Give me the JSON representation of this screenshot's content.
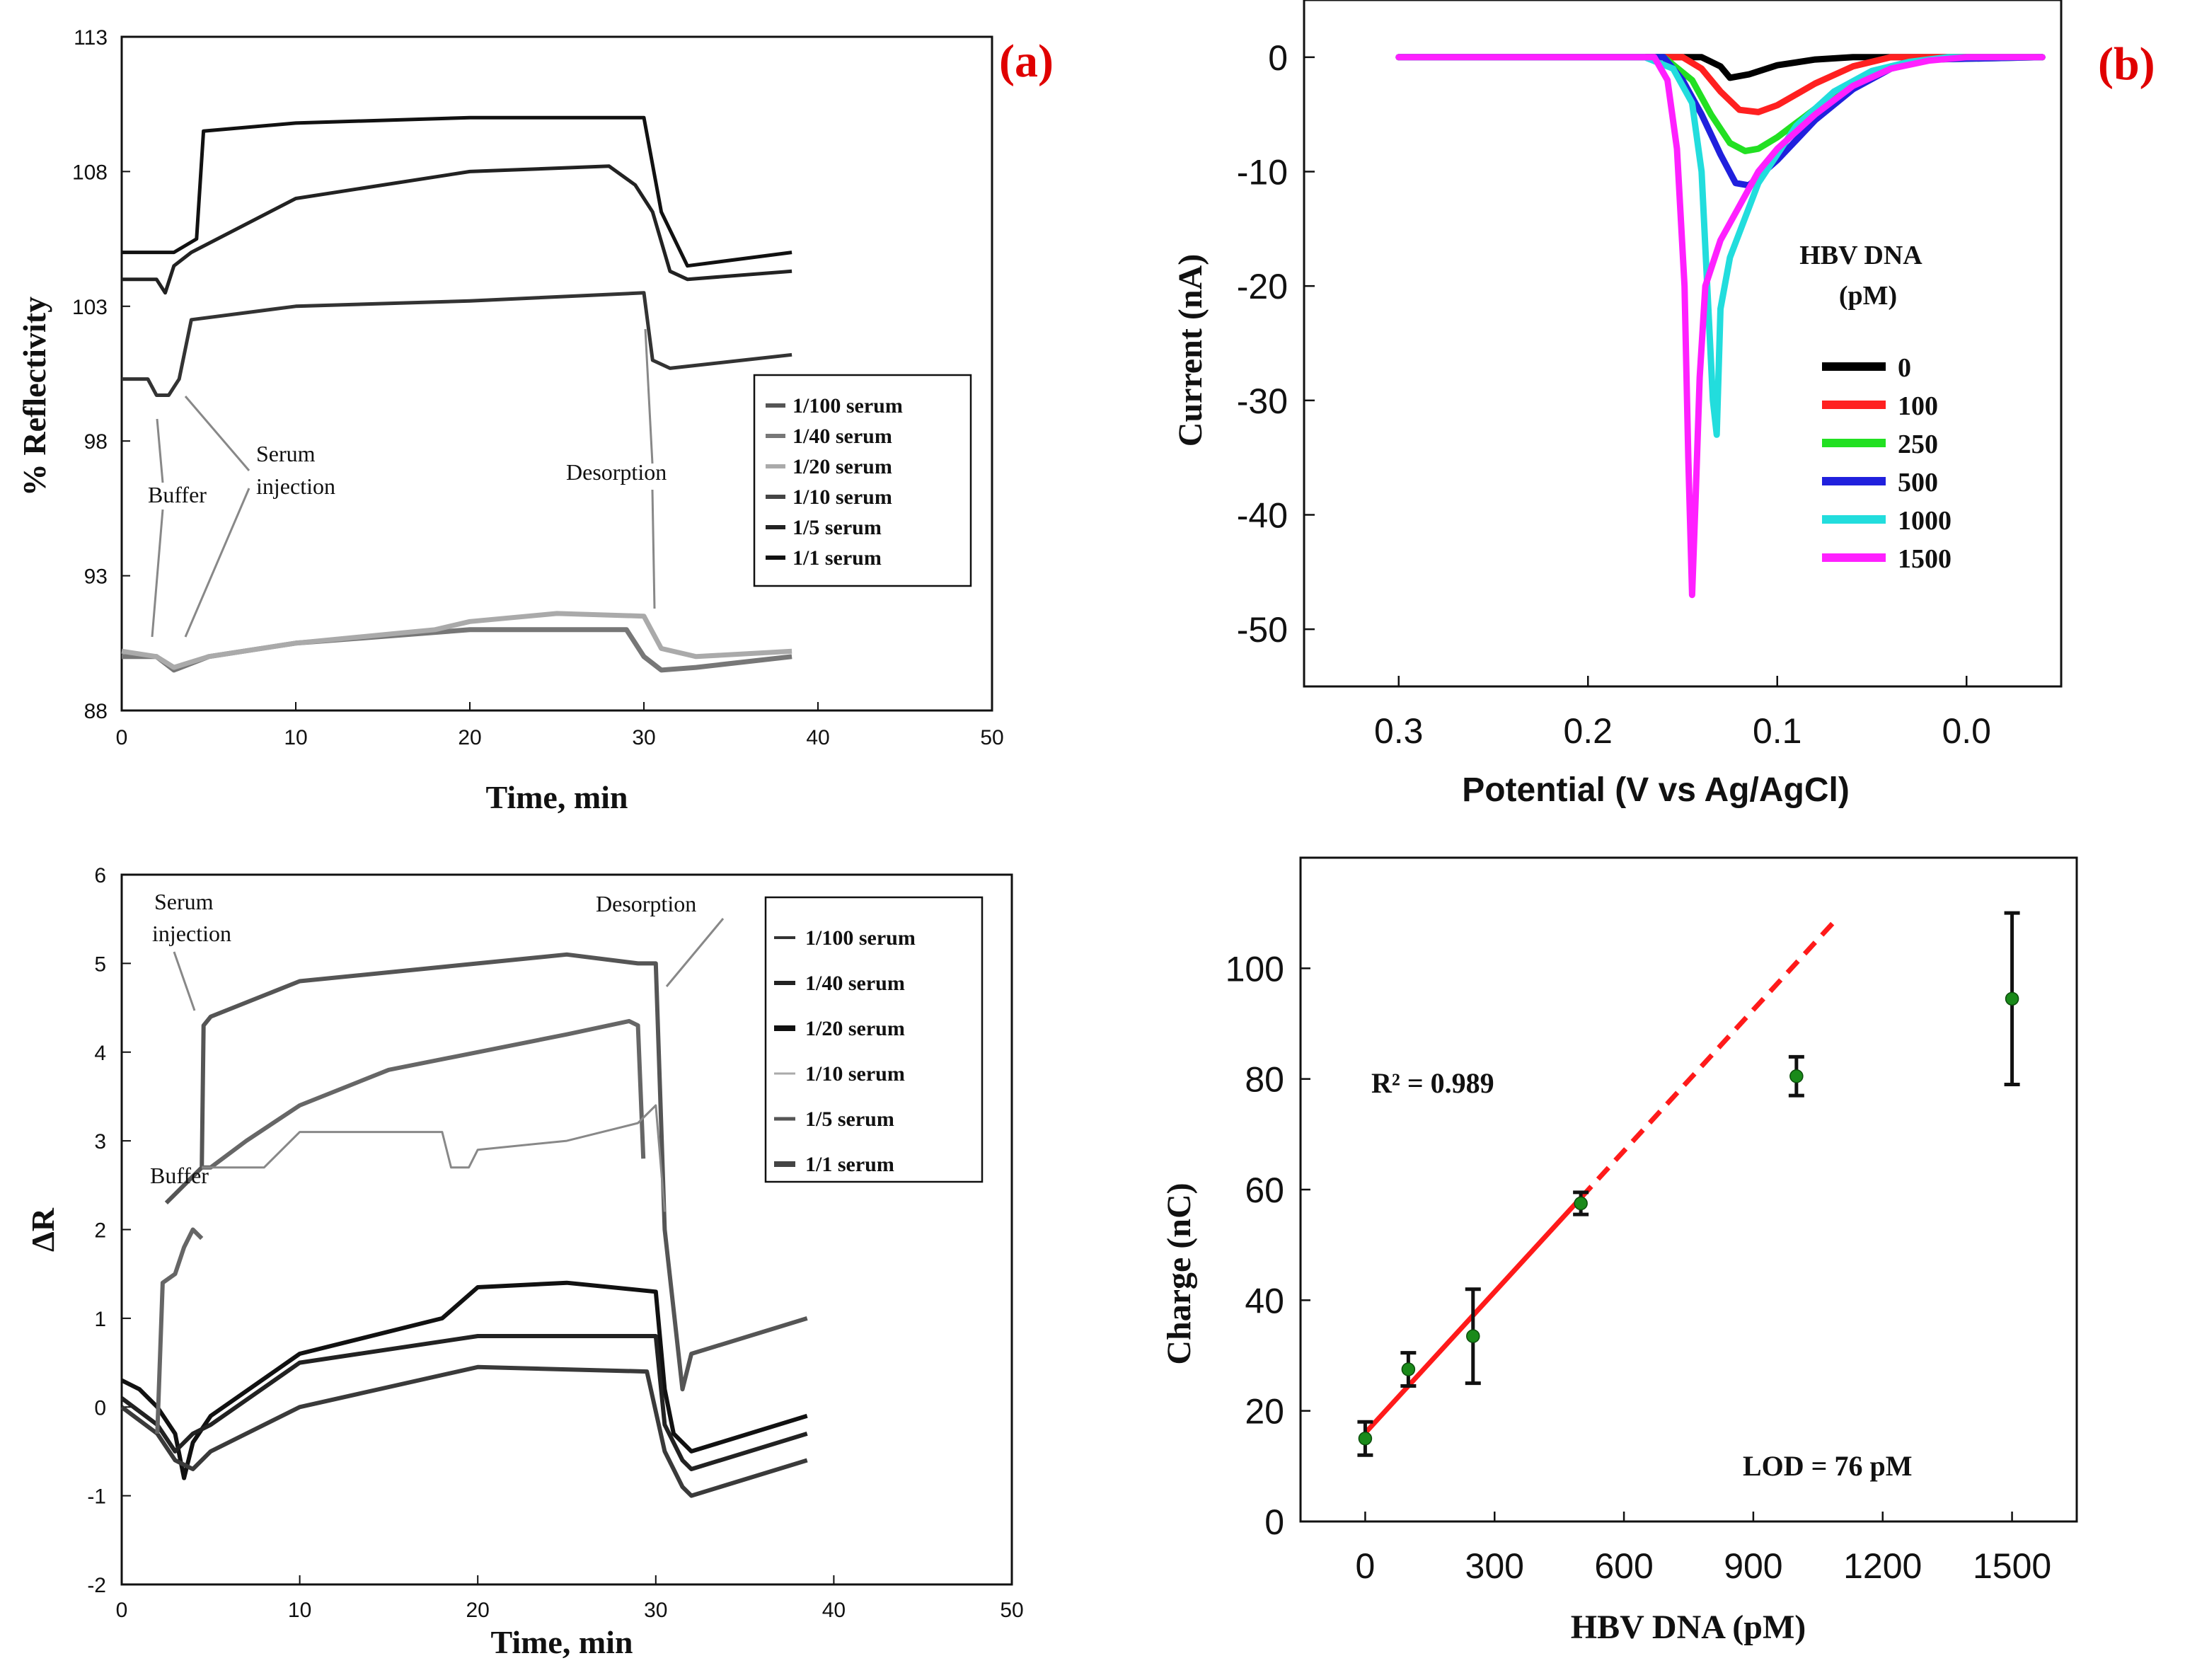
{
  "panels": {
    "a": "(a)",
    "b": "(b)"
  },
  "chart_data": [
    {
      "id": "a_top",
      "type": "line",
      "xlabel": "Time, min",
      "ylabel": "% Reflectivity",
      "xlim": [
        0,
        50
      ],
      "ylim": [
        88,
        113
      ],
      "xticks": [
        0,
        10,
        20,
        30,
        40,
        50
      ],
      "yticks": [
        88,
        93,
        98,
        103,
        108,
        113
      ],
      "legend": [
        "1/100 serum",
        "1/40 serum",
        "1/20 serum",
        "1/10 serum",
        "1/5 serum",
        "1/1 serum"
      ],
      "annotations": [
        "Buffer",
        "Serum",
        "injection",
        "Desorption"
      ],
      "series": [
        {
          "name": "1/1 serum",
          "color": "#111111",
          "x": [
            0,
            3,
            4.3,
            4.7,
            10,
            20,
            30,
            31,
            32.5,
            38.5
          ],
          "y": [
            105,
            105,
            105.5,
            109.5,
            109.8,
            110,
            110,
            106.5,
            104.5,
            105
          ]
        },
        {
          "name": "1/5 serum",
          "color": "#222222",
          "x": [
            0,
            2,
            2.5,
            3,
            4,
            10,
            20,
            28,
            29.5,
            30.5,
            31.5,
            32.5,
            38.5
          ],
          "y": [
            104,
            104,
            103.5,
            104.5,
            105,
            107,
            108,
            108.2,
            107.5,
            106.5,
            104.3,
            104,
            104.3
          ]
        },
        {
          "name": "1/10 serum",
          "color": "#333333",
          "x": [
            0,
            1.5,
            2,
            2.7,
            3.3,
            4,
            10,
            20,
            30,
            30.5,
            31.5,
            38.5
          ],
          "y": [
            100.3,
            100.3,
            99.7,
            99.7,
            100.3,
            102.5,
            103,
            103.2,
            103.5,
            101,
            100.7,
            101.2
          ]
        },
        {
          "name": "1/40 serum",
          "color": "#777777",
          "x": [
            0,
            2,
            3,
            5,
            10,
            20,
            29,
            30,
            31,
            33,
            38.5
          ],
          "y": [
            90,
            90,
            89.5,
            90,
            90.5,
            91,
            91,
            90,
            89.5,
            89.6,
            90
          ]
        },
        {
          "name": "1/20 serum",
          "color": "#aaaaaa",
          "x": [
            0,
            2,
            3,
            5,
            10,
            18,
            20,
            25,
            30,
            31,
            33,
            38.5
          ],
          "y": [
            90.2,
            90,
            89.6,
            90,
            90.5,
            91,
            91.3,
            91.6,
            91.5,
            90.3,
            90,
            90.2
          ]
        }
      ]
    },
    {
      "id": "b_top",
      "type": "line",
      "xlabel": "Potential  (V vs Ag/AgCl)",
      "ylabel": "Current (nA)",
      "xlim": [
        0.35,
        -0.05
      ],
      "ylim": [
        -55,
        5
      ],
      "xticks": [
        0.3,
        0.2,
        0.1,
        0.0
      ],
      "xtick_labels": [
        "0.3",
        "0.2",
        "0.1",
        "0.0"
      ],
      "yticks": [
        0,
        -10,
        -20,
        -30,
        -40,
        -50
      ],
      "legend_title": [
        "HBV DNA",
        "(pM)"
      ],
      "legend": [
        "0",
        "100",
        "250",
        "500",
        "1000",
        "1500"
      ],
      "series": [
        {
          "name": "0",
          "color": "#000000",
          "x": [
            0.3,
            0.14,
            0.13,
            0.125,
            0.115,
            0.1,
            0.08,
            0.06,
            -0.04
          ],
          "y": [
            0,
            0,
            -0.8,
            -1.8,
            -1.5,
            -0.7,
            -0.2,
            0,
            0
          ]
        },
        {
          "name": "100",
          "color": "#ff2020",
          "x": [
            0.3,
            0.15,
            0.14,
            0.13,
            0.12,
            0.11,
            0.1,
            0.08,
            0.06,
            0.04,
            -0.04
          ],
          "y": [
            0,
            0,
            -1,
            -3,
            -4.6,
            -4.8,
            -4.2,
            -2.3,
            -0.8,
            0,
            0
          ]
        },
        {
          "name": "250",
          "color": "#22e022",
          "x": [
            0.3,
            0.16,
            0.145,
            0.135,
            0.125,
            0.117,
            0.11,
            0.1,
            0.08,
            0.06,
            0.04,
            0.02,
            -0.04
          ],
          "y": [
            0,
            0,
            -2,
            -5,
            -7.5,
            -8.2,
            -8,
            -7,
            -4.5,
            -2.3,
            -0.8,
            -0.2,
            0
          ]
        },
        {
          "name": "500",
          "color": "#2020dd",
          "x": [
            0.3,
            0.16,
            0.15,
            0.14,
            0.13,
            0.122,
            0.115,
            0.1,
            0.08,
            0.06,
            0.04,
            0.02,
            -0.04
          ],
          "y": [
            0,
            0,
            -2,
            -5,
            -8.5,
            -11,
            -11.2,
            -9,
            -5.5,
            -2.8,
            -1,
            -0.2,
            0
          ]
        },
        {
          "name": "1000",
          "color": "#22dddd",
          "x": [
            0.3,
            0.17,
            0.155,
            0.145,
            0.14,
            0.137,
            0.134,
            0.132,
            0.13,
            0.125,
            0.11,
            0.09,
            0.07,
            0.05,
            0.03,
            0.01,
            -0.04
          ],
          "y": [
            0,
            0,
            -1,
            -4,
            -10,
            -20,
            -30,
            -33,
            -22,
            -17.5,
            -11,
            -6,
            -3,
            -1.2,
            -0.4,
            0,
            0
          ]
        },
        {
          "name": "1500",
          "color": "#ff20ff",
          "x": [
            0.3,
            0.165,
            0.158,
            0.153,
            0.149,
            0.147,
            0.145,
            0.143,
            0.141,
            0.138,
            0.13,
            0.12,
            0.11,
            0.1,
            0.08,
            0.06,
            0.04,
            0.02,
            0.0,
            -0.04
          ],
          "y": [
            0,
            0,
            -2,
            -8,
            -20,
            -35,
            -47,
            -38,
            -28,
            -20,
            -16,
            -13,
            -10,
            -8,
            -5,
            -2.5,
            -1,
            -0.3,
            0,
            0
          ]
        }
      ]
    },
    {
      "id": "a_bottom",
      "type": "line",
      "xlabel": "Time, min",
      "ylabel": "ΔR",
      "xlim": [
        0,
        50
      ],
      "ylim": [
        -2,
        6
      ],
      "xticks": [
        0,
        10,
        20,
        30,
        40,
        50
      ],
      "yticks": [
        -2,
        -1,
        0,
        1,
        2,
        3,
        4,
        5,
        6
      ],
      "legend": [
        "1/100 serum",
        "1/40 serum",
        "1/20 serum",
        "1/10 serum",
        "1/5 serum",
        "1/1 serum"
      ],
      "annotations": [
        "Serum",
        "injection",
        "Desorption",
        "Buffer"
      ],
      "series": [
        {
          "name": "1/1 serum",
          "color": "#555555",
          "x": [
            2.5,
            3.5,
            4.5,
            4.6,
            5,
            10,
            20,
            25,
            29,
            30,
            30.5,
            31.5,
            32,
            38.5
          ],
          "y": [
            2.3,
            2.5,
            2.7,
            4.3,
            4.4,
            4.8,
            5,
            5.1,
            5,
            5,
            2,
            0.2,
            0.6,
            1
          ]
        },
        {
          "name": "1/5 serum",
          "color": "#666666",
          "x": [
            4.5,
            5,
            7,
            10,
            15,
            20,
            25,
            28.5,
            29,
            29.3
          ],
          "y": [
            2.7,
            2.7,
            3,
            3.4,
            3.8,
            4,
            4.2,
            4.35,
            4.3,
            2.8
          ]
        },
        {
          "name": "1/10 serum",
          "color": "#888888",
          "x": [
            4.5,
            8,
            10,
            15,
            18,
            18.5,
            19.5,
            20,
            25,
            29,
            30,
            30.5
          ],
          "y": [
            2.7,
            2.7,
            3.1,
            3.1,
            3.1,
            2.7,
            2.7,
            2.9,
            3,
            3.2,
            3.4,
            2.2
          ]
        },
        {
          "name": "1/20 serum",
          "color": "#111111",
          "x": [
            0,
            1,
            2,
            3,
            3.5,
            4,
            5,
            10,
            18,
            20,
            25,
            30,
            30.5,
            31,
            32,
            38.5
          ],
          "y": [
            0.3,
            0.2,
            0,
            -0.3,
            -0.8,
            -0.4,
            -0.1,
            0.6,
            1,
            1.35,
            1.4,
            1.3,
            0.2,
            -0.3,
            -0.5,
            -0.1
          ]
        },
        {
          "name": "1/40 serum",
          "color": "#222222",
          "x": [
            0,
            2,
            3,
            4,
            5,
            10,
            20,
            30,
            30.5,
            31.5,
            32,
            38.5
          ],
          "y": [
            0.1,
            -0.2,
            -0.5,
            -0.3,
            -0.2,
            0.5,
            0.8,
            0.8,
            -0.2,
            -0.6,
            -0.7,
            -0.3
          ]
        },
        {
          "name": "1/100 serum",
          "color": "#3a3a3a",
          "x": [
            0,
            2,
            3,
            4,
            5,
            10,
            20,
            29.5,
            30.5,
            31.5,
            32,
            38.5
          ],
          "y": [
            0,
            -0.3,
            -0.6,
            -0.7,
            -0.5,
            0,
            0.45,
            0.4,
            -0.5,
            -0.9,
            -1,
            -0.6
          ]
        },
        {
          "name": "Buffer",
          "color": "#666666",
          "x": [
            2,
            2.3,
            3,
            3.5,
            4,
            4.5
          ],
          "y": [
            -0.3,
            1.4,
            1.5,
            1.8,
            2,
            1.9
          ]
        }
      ]
    },
    {
      "id": "b_bottom",
      "type": "scatter",
      "xlabel": "HBV DNA (pM)",
      "ylabel": "Charge (nC)",
      "xlim": [
        -150,
        1650
      ],
      "ylim": [
        0,
        120
      ],
      "xticks": [
        0,
        300,
        600,
        900,
        1200,
        1500
      ],
      "yticks": [
        0,
        20,
        40,
        60,
        80,
        100
      ],
      "points": [
        {
          "x": 0,
          "y": 15,
          "err": 3
        },
        {
          "x": 100,
          "y": 27.5,
          "err": 3
        },
        {
          "x": 250,
          "y": 33.5,
          "err": 8.5
        },
        {
          "x": 500,
          "y": 57.5,
          "err": 2
        },
        {
          "x": 1000,
          "y": 80.5,
          "err": 3.5
        },
        {
          "x": 1500,
          "y": 94.5,
          "err": 15.5
        }
      ],
      "fit": {
        "x_solid": [
          0,
          500
        ],
        "x_dashed": [
          500,
          1090
        ],
        "slope": 0.085,
        "intercept": 16
      },
      "annotations": {
        "r2": "R² = 0.989",
        "lod": "LOD = 76 pM"
      }
    }
  ]
}
